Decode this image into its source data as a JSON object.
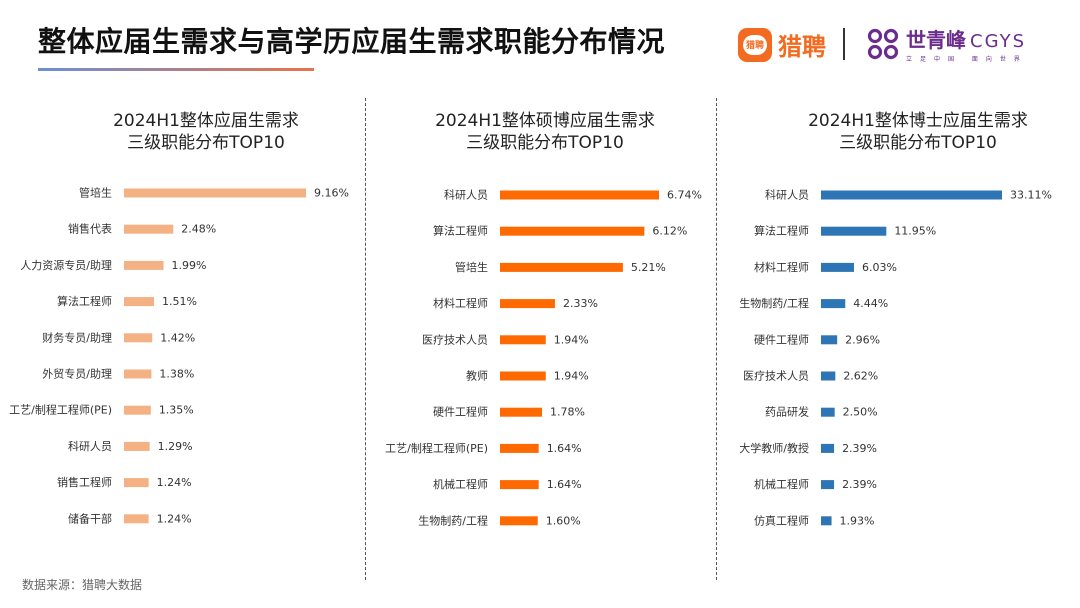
{
  "header": {
    "title": "整体应届生需求与高学历应届生需求职能分布情况",
    "logos": {
      "liepin_icon_text": "猎聘",
      "liepin_name": "猎聘",
      "divider": "|",
      "cgys_cn": "世青峰",
      "cgys_en": "CGYS",
      "cgys_slogan": "立足中国 面向世界"
    }
  },
  "colors": {
    "chart1": "#f4b183",
    "chart2": "#ff6a00",
    "chart3": "#2e75b6",
    "liepin": "#f26b21",
    "cgys": "#6b2c8e"
  },
  "chart_data": [
    {
      "type": "bar",
      "orientation": "horizontal",
      "title_line1": "2024H1整体应届生需求",
      "title_line2": "三级职能分布TOP10",
      "categories": [
        "管培生",
        "销售代表",
        "人力资源专员/助理",
        "算法工程师",
        "财务专员/助理",
        "外贸专员/助理",
        "工艺/制程工程师(PE)",
        "科研人员",
        "销售工程师",
        "储备干部"
      ],
      "values": [
        9.16,
        2.48,
        1.99,
        1.51,
        1.42,
        1.38,
        1.35,
        1.29,
        1.24,
        1.24
      ],
      "labels": [
        "9.16%",
        "2.48%",
        "1.99%",
        "1.51%",
        "1.42%",
        "1.38%",
        "1.35%",
        "1.29%",
        "1.24%",
        "1.24%"
      ],
      "xlim": [
        0,
        9.16
      ],
      "color": "#f4b183",
      "axes_visible": false,
      "grid": false
    },
    {
      "type": "bar",
      "orientation": "horizontal",
      "title_line1": "2024H1整体硕博应届生需求",
      "title_line2": "三级职能分布TOP10",
      "categories": [
        "科研人员",
        "算法工程师",
        "管培生",
        "材料工程师",
        "医疗技术人员",
        "教师",
        "硬件工程师",
        "工艺/制程工程师(PE)",
        "机械工程师",
        "生物制药/工程"
      ],
      "values": [
        6.74,
        6.12,
        5.21,
        2.33,
        1.94,
        1.94,
        1.78,
        1.64,
        1.64,
        1.6
      ],
      "labels": [
        "6.74%",
        "6.12%",
        "5.21%",
        "2.33%",
        "1.94%",
        "1.94%",
        "1.78%",
        "1.64%",
        "1.64%",
        "1.60%"
      ],
      "xlim": [
        0,
        6.74
      ],
      "color": "#ff6a00",
      "axes_visible": false,
      "grid": false
    },
    {
      "type": "bar",
      "orientation": "horizontal",
      "title_line1": "2024H1整体博士应届生需求",
      "title_line2": "三级职能分布TOP10",
      "categories": [
        "科研人员",
        "算法工程师",
        "材料工程师",
        "生物制药/工程",
        "硬件工程师",
        "医疗技术人员",
        "药品研发",
        "大学教师/教授",
        "机械工程师",
        "仿真工程师"
      ],
      "values": [
        33.11,
        11.95,
        6.03,
        4.44,
        2.96,
        2.62,
        2.5,
        2.39,
        2.39,
        1.93
      ],
      "labels": [
        "33.11%",
        "11.95%",
        "6.03%",
        "4.44%",
        "2.96%",
        "2.62%",
        "2.50%",
        "2.39%",
        "2.39%",
        "1.93%"
      ],
      "xlim": [
        0,
        33.11
      ],
      "color": "#2e75b6",
      "axes_visible": false,
      "grid": false
    }
  ],
  "footer": {
    "source": "数据来源：猎聘大数据"
  }
}
